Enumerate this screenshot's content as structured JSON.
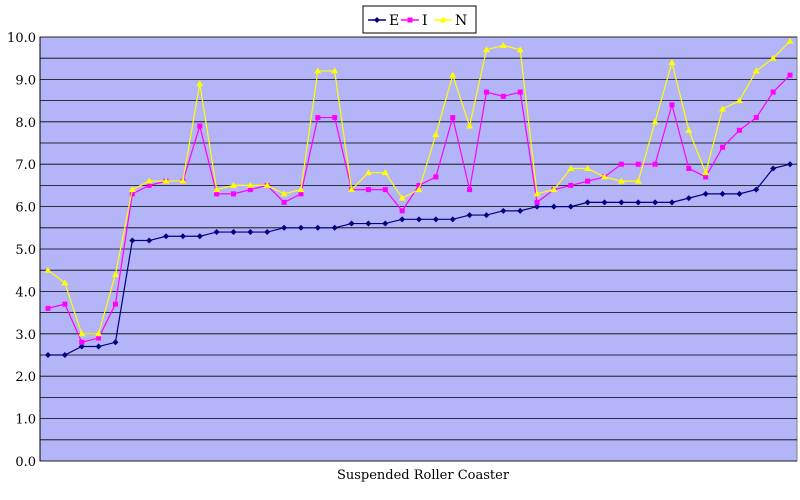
{
  "chart_data": {
    "type": "line",
    "title": "",
    "xlabel": "Suspended Roller Coaster",
    "ylabel": "",
    "ylim": [
      0,
      10
    ],
    "ytick_step": 1,
    "ytick_labels": [
      "0.0",
      "1.0",
      "2.0",
      "3.0",
      "4.0",
      "5.0",
      "6.0",
      "7.0",
      "8.0",
      "9.0",
      "10.0"
    ],
    "grid": true,
    "legend_position": "top-center",
    "background_color": "#b4b4f8",
    "series": [
      {
        "name": "E",
        "color": "#000080",
        "marker": "diamond",
        "values": [
          2.5,
          2.5,
          2.7,
          2.7,
          2.8,
          5.2,
          5.2,
          5.3,
          5.3,
          5.3,
          5.4,
          5.4,
          5.4,
          5.4,
          5.5,
          5.5,
          5.5,
          5.5,
          5.6,
          5.6,
          5.6,
          5.7,
          5.7,
          5.7,
          5.7,
          5.8,
          5.8,
          5.9,
          5.9,
          6.0,
          6.0,
          6.0,
          6.1,
          6.1,
          6.1,
          6.1,
          6.1,
          6.1,
          6.2,
          6.3,
          6.3,
          6.3,
          6.4,
          6.9,
          7.0
        ]
      },
      {
        "name": "I",
        "color": "#ff00ff",
        "marker": "square",
        "values": [
          3.6,
          3.7,
          2.8,
          2.9,
          3.7,
          6.3,
          6.5,
          6.6,
          6.6,
          7.9,
          6.3,
          6.3,
          6.4,
          6.5,
          6.1,
          6.3,
          8.1,
          8.1,
          6.4,
          6.4,
          6.4,
          5.9,
          6.5,
          6.7,
          8.1,
          6.4,
          8.7,
          8.6,
          8.7,
          6.1,
          6.4,
          6.5,
          6.6,
          6.7,
          7.0,
          7.0,
          7.0,
          8.4,
          6.9,
          6.7,
          7.4,
          7.8,
          8.1,
          8.7,
          9.1
        ]
      },
      {
        "name": "N",
        "color": "#ffff00",
        "marker": "triangle",
        "values": [
          4.5,
          4.2,
          3.0,
          3.0,
          4.4,
          6.4,
          6.6,
          6.6,
          6.6,
          8.9,
          6.4,
          6.5,
          6.5,
          6.5,
          6.3,
          6.4,
          9.2,
          9.2,
          6.4,
          6.8,
          6.8,
          6.2,
          6.4,
          7.7,
          9.1,
          7.9,
          9.7,
          9.8,
          9.7,
          6.3,
          6.4,
          6.9,
          6.9,
          6.7,
          6.6,
          6.6,
          8.0,
          9.4,
          7.8,
          6.8,
          8.3,
          8.5,
          9.2,
          9.5,
          9.9
        ]
      }
    ]
  }
}
